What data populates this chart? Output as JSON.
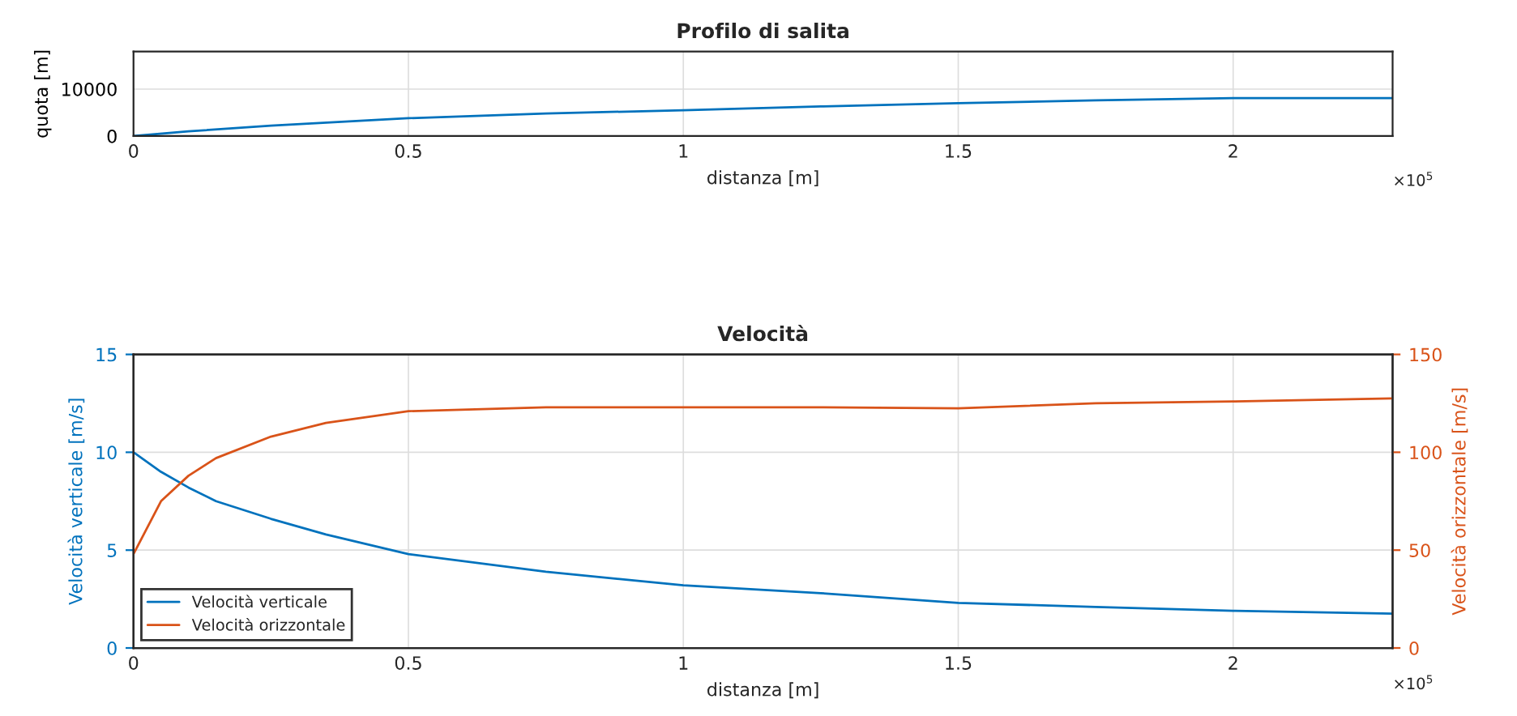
{
  "chart_data": [
    {
      "type": "line",
      "title": "Profilo di salita",
      "xlabel": "distanza [m]",
      "ylabel": "quota [m]",
      "x": [
        0,
        0.1,
        0.25,
        0.5,
        0.75,
        1,
        1.25,
        1.5,
        1.75,
        2,
        2.29
      ],
      "series": [
        {
          "color": "#0072bd",
          "values": [
            0,
            1000,
            2200,
            3800,
            4800,
            5500,
            6300,
            7000,
            7600,
            8100,
            8100
          ]
        }
      ],
      "xlim": [
        0,
        2.29
      ],
      "xticks": [
        0,
        0.5,
        1,
        1.5,
        2
      ],
      "ylim": [
        0,
        18000
      ],
      "yticks": [
        0,
        10000
      ],
      "grid": true,
      "annotations": [
        "×10$^{5}$"
      ]
    },
    {
      "type": "line",
      "title": "Velocità",
      "xlabel": "distanza [m]",
      "ylabel": "Velocità verticale [m/s]",
      "y2label": "Velocità orizzontale [m/s]",
      "x": [
        0,
        0.05,
        0.1,
        0.15,
        0.25,
        0.35,
        0.5,
        0.75,
        1,
        1.25,
        1.5,
        1.75,
        2,
        2.29
      ],
      "series": [
        {
          "name": "Velocità verticale",
          "color": "#0072bd",
          "values": [
            10,
            9,
            8.2,
            7.5,
            6.6,
            5.8,
            4.8,
            3.9,
            3.2,
            2.8,
            2.3,
            2.1,
            1.9,
            1.75
          ]
        },
        {
          "name": "Velocità orizzontale",
          "color": "#d95319",
          "axis": "y2",
          "values": [
            48,
            75,
            88,
            97,
            108,
            115,
            121,
            123,
            123,
            123,
            122.5,
            125,
            126,
            127.5
          ]
        }
      ],
      "xlim": [
        0,
        2.29
      ],
      "xticks": [
        0,
        0.5,
        1,
        1.5,
        2
      ],
      "ylim": [
        0,
        15
      ],
      "yticks": [
        0,
        5,
        10,
        15
      ],
      "y2lim": [
        0,
        150
      ],
      "y2ticks": [
        0,
        50,
        100,
        150
      ],
      "grid": true,
      "legend": "bottom left",
      "annotations": [
        "×10$^{5}$"
      ]
    }
  ]
}
